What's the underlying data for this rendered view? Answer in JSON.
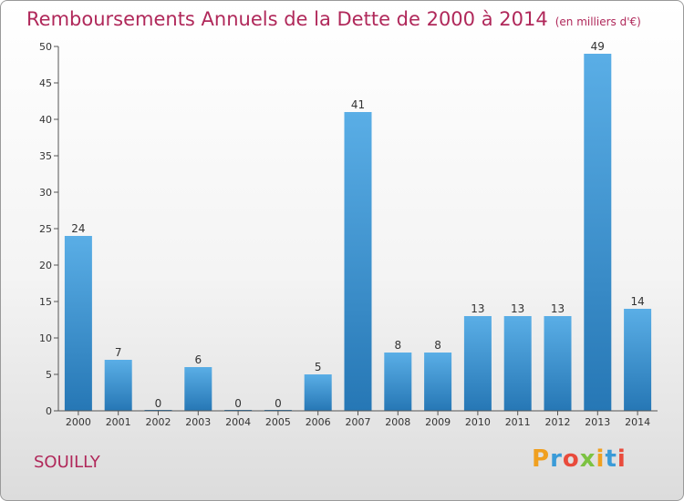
{
  "header": {
    "title": "Remboursements Annuels de la Dette de 2000 à 2014",
    "unit": "(en milliers d'€)"
  },
  "footer": {
    "commune": "SOUILLY",
    "brand": "Proxiti"
  },
  "colors": {
    "title": "#b0285a",
    "bar_top": "#5aaee6",
    "bar_bottom": "#2677b5"
  },
  "chart_data": {
    "type": "bar",
    "categories": [
      "2000",
      "2001",
      "2002",
      "2003",
      "2004",
      "2005",
      "2006",
      "2007",
      "2008",
      "2009",
      "2010",
      "2011",
      "2012",
      "2013",
      "2014"
    ],
    "values": [
      24,
      7,
      0,
      6,
      0,
      0,
      5,
      41,
      8,
      8,
      13,
      13,
      13,
      49,
      14
    ],
    "title": "Remboursements Annuels de la Dette de 2000 à 2014",
    "xlabel": "",
    "ylabel": "",
    "ylim": [
      0,
      50
    ],
    "yticks": [
      0,
      5,
      10,
      15,
      20,
      25,
      30,
      35,
      40,
      45,
      50
    ],
    "grid": false,
    "data_labels": true
  }
}
